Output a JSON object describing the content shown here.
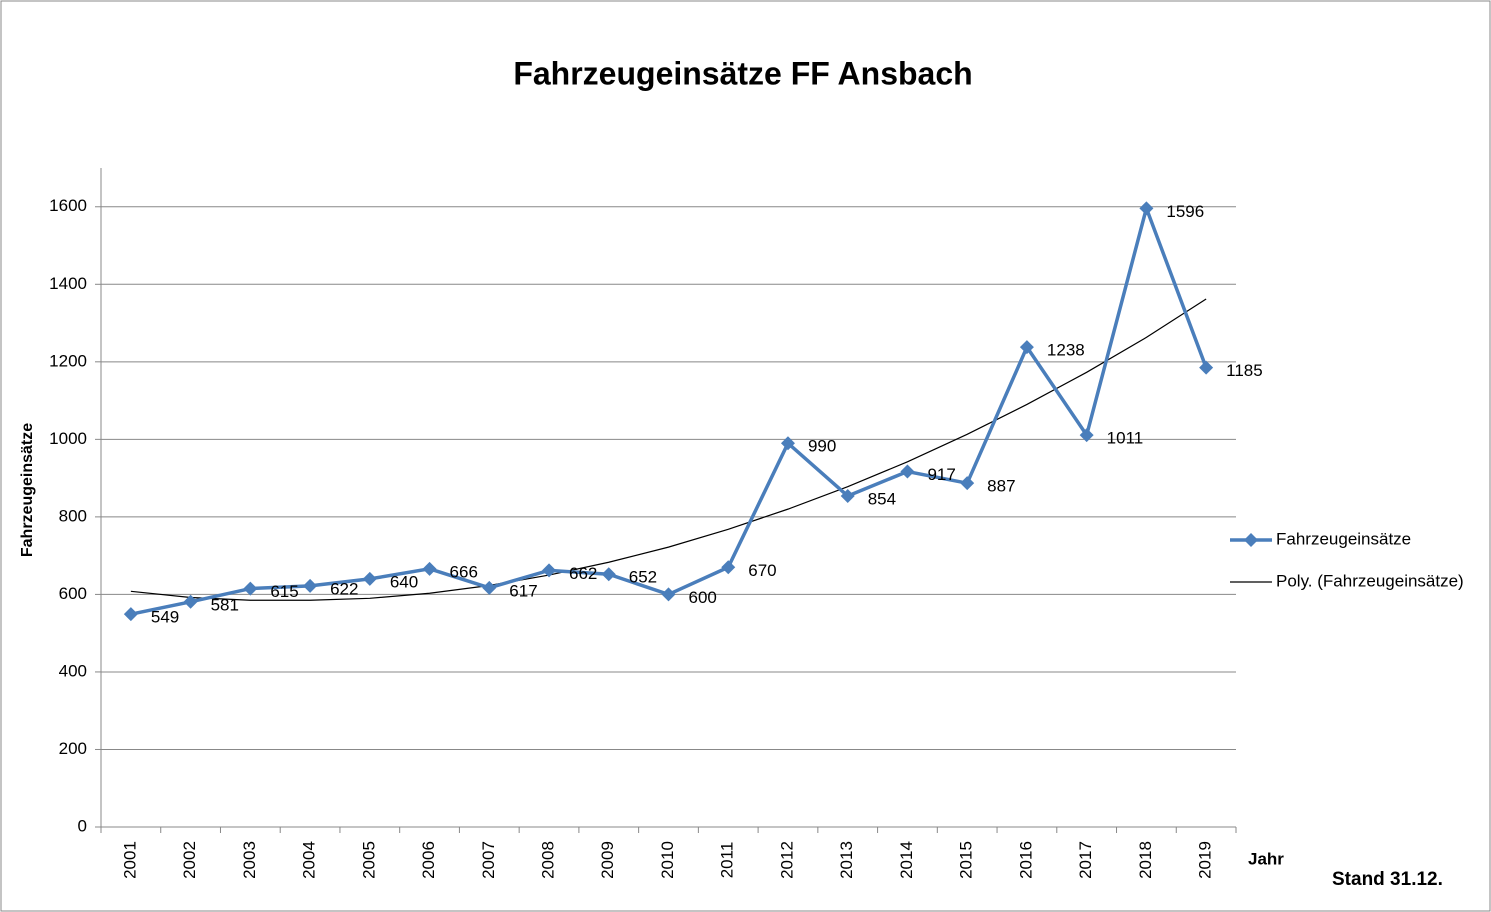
{
  "chart_data": {
    "type": "line",
    "title": "Fahrzeugeinsätze FF Ansbach",
    "y_label": "Fahrzeugeinsätze",
    "x_label": "Jahr",
    "annotation": "Stand 31.12.",
    "categories": [
      "2001",
      "2002",
      "2003",
      "2004",
      "2005",
      "2006",
      "2007",
      "2008",
      "2009",
      "2010",
      "2011",
      "2012",
      "2013",
      "2014",
      "2015",
      "2016",
      "2017",
      "2018",
      "2019"
    ],
    "series": [
      {
        "name": "Fahrzeugeinsätze",
        "color": "#4a7ebb",
        "marker": "diamond",
        "data_labels": true,
        "values": [
          549,
          581,
          615,
          622,
          640,
          666,
          617,
          662,
          652,
          600,
          670,
          990,
          854,
          917,
          887,
          1238,
          1011,
          1596,
          1185
        ]
      },
      {
        "name": "Poly. (Fahrzeugeinsätze)",
        "color": "#000000",
        "values": [
          608,
          592,
          585,
          585,
          590,
          603,
          623,
          650,
          683,
          722,
          768,
          820,
          878,
          942,
          1013,
          1090,
          1173,
          1263,
          1362
        ]
      }
    ],
    "ylim": [
      0,
      1700
    ],
    "yticks": [
      0,
      200,
      400,
      600,
      800,
      1000,
      1200,
      1400,
      1600
    ],
    "grid": true,
    "legend": "right"
  }
}
